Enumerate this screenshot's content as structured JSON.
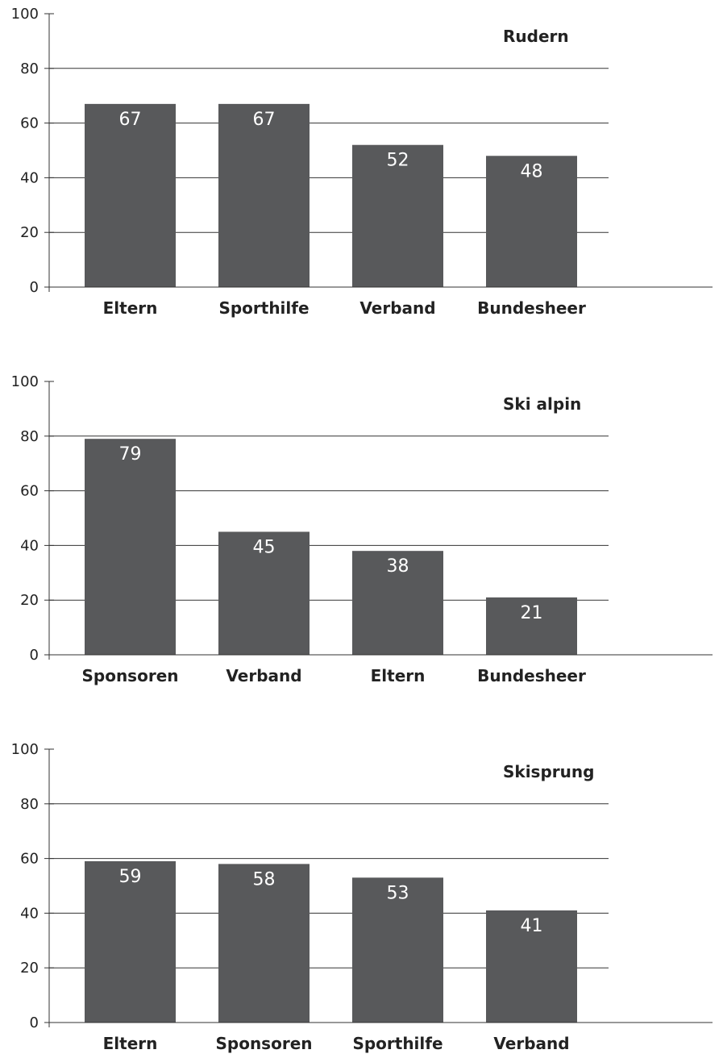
{
  "chart_data": [
    {
      "type": "bar",
      "title": "Rudern",
      "categories": [
        "Eltern",
        "Sporthilfe",
        "Verband",
        "Bundesheer"
      ],
      "values": [
        67,
        67,
        52,
        48
      ],
      "ylim": [
        0,
        100
      ],
      "yticks": [
        "0",
        "20",
        "40",
        "60",
        "80",
        "100"
      ],
      "grid": true,
      "bar_color": "#58595b"
    },
    {
      "type": "bar",
      "title": "Ski alpin",
      "categories": [
        "Sponsoren",
        "Verband",
        "Eltern",
        "Bundesheer"
      ],
      "values": [
        79,
        45,
        38,
        21
      ],
      "ylim": [
        0,
        100
      ],
      "yticks": [
        "0",
        "20",
        "40",
        "60",
        "80",
        "100"
      ],
      "grid": true,
      "bar_color": "#58595b"
    },
    {
      "type": "bar",
      "title": "Skisprung",
      "categories": [
        "Eltern",
        "Sponsoren",
        "Sporthilfe",
        "Verband"
      ],
      "values": [
        59,
        58,
        53,
        41
      ],
      "ylim": [
        0,
        100
      ],
      "yticks": [
        "0",
        "20",
        "40",
        "60",
        "80",
        "100"
      ],
      "grid": true,
      "bar_color": "#58595b"
    }
  ]
}
